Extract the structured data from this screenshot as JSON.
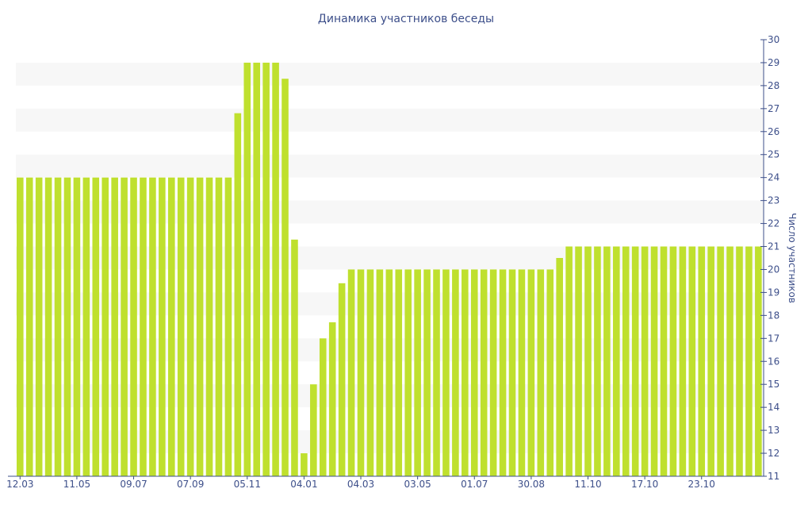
{
  "chart_data": {
    "type": "bar",
    "title": "Динамика участников беседы",
    "ylabel": "Число участников",
    "xlabel": "",
    "ylim": [
      11,
      30
    ],
    "y_ticks": [
      11,
      12,
      13,
      14,
      15,
      16,
      17,
      18,
      19,
      20,
      21,
      22,
      23,
      24,
      25,
      26,
      27,
      28,
      29,
      30
    ],
    "y_axis_position": "right",
    "grid": "alternating horizontal bands",
    "bar_color": "#bfe02e",
    "band_color": "#f7f7f7",
    "axis_color": "#3d4f8a",
    "x_tick_labels": [
      "12.03",
      "11.05",
      "09.07",
      "07.09",
      "05.11",
      "04.01",
      "04.03",
      "03.05",
      "01.07",
      "30.08",
      "11.10",
      "17.10",
      "23.10"
    ],
    "x_tick_bar_index": [
      0,
      6,
      12,
      18,
      24,
      30,
      36,
      42,
      48,
      54,
      60,
      66,
      72
    ],
    "values": [
      24,
      24,
      24,
      24,
      24,
      24,
      24,
      24,
      24,
      24,
      24,
      24,
      24,
      24,
      24,
      24,
      24,
      24,
      24,
      24,
      24,
      24,
      24,
      26.8,
      29,
      29,
      29,
      29,
      28.3,
      21.3,
      12,
      15,
      17,
      17.7,
      19.4,
      20,
      20,
      20,
      20,
      20,
      20,
      20,
      20,
      20,
      20,
      20,
      20,
      20,
      20,
      20,
      20,
      20,
      20,
      20,
      20,
      20,
      20,
      20.5,
      21,
      21,
      21,
      21,
      21,
      21,
      21,
      21,
      21,
      21,
      21,
      21,
      21,
      21,
      21,
      21,
      21,
      21,
      21,
      21,
      21
    ]
  }
}
